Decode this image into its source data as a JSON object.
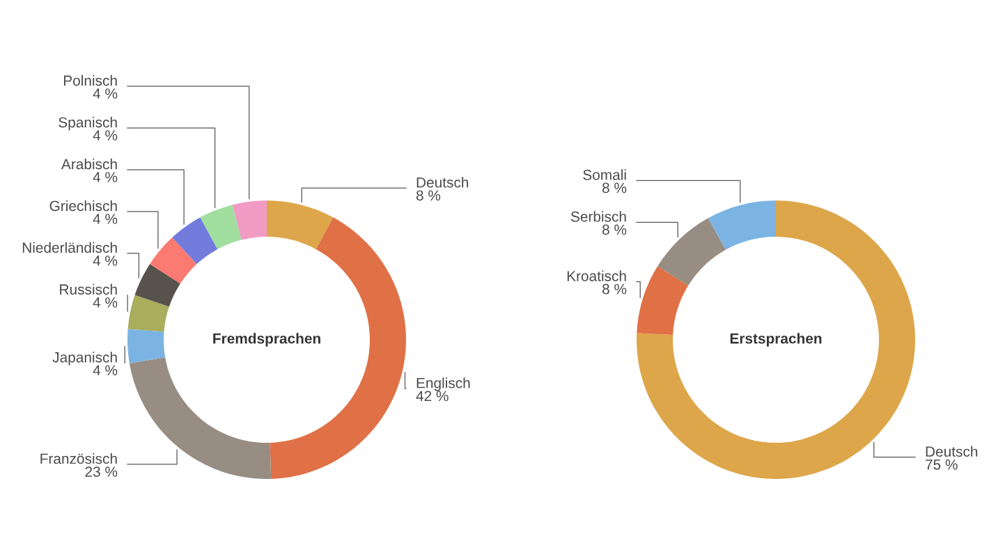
{
  "chart_data": [
    {
      "type": "donut",
      "title": "Fremdsprachen",
      "categories": [
        "Deutsch",
        "Englisch",
        "Französisch",
        "Japanisch",
        "Russisch",
        "Niederländisch",
        "Griechisch",
        "Arabisch",
        "Spanisch",
        "Polnisch"
      ],
      "values": [
        8,
        42,
        23,
        4,
        4,
        4,
        4,
        4,
        4,
        4
      ],
      "value_labels": [
        "8 %",
        "42 %",
        "23 %",
        "4 %",
        "4 %",
        "4 %",
        "4 %",
        "4 %",
        "4 %",
        "4 %"
      ],
      "colors": [
        "#dda64a",
        "#e07045",
        "#978d82",
        "#7bb4e3",
        "#a9ad5c",
        "#57534c",
        "#fb7a72",
        "#727cdc",
        "#a0dfa0",
        "#f19ac4"
      ]
    },
    {
      "type": "donut",
      "title": "Erstsprachen",
      "categories": [
        "Deutsch",
        "Kroatisch",
        "Serbisch",
        "Somali"
      ],
      "values": [
        75,
        8,
        8,
        8
      ],
      "value_labels": [
        "75 %",
        "8 %",
        "8 %",
        "8 %"
      ],
      "colors": [
        "#dda64a",
        "#e07045",
        "#978d82",
        "#7bb4e3"
      ]
    }
  ]
}
